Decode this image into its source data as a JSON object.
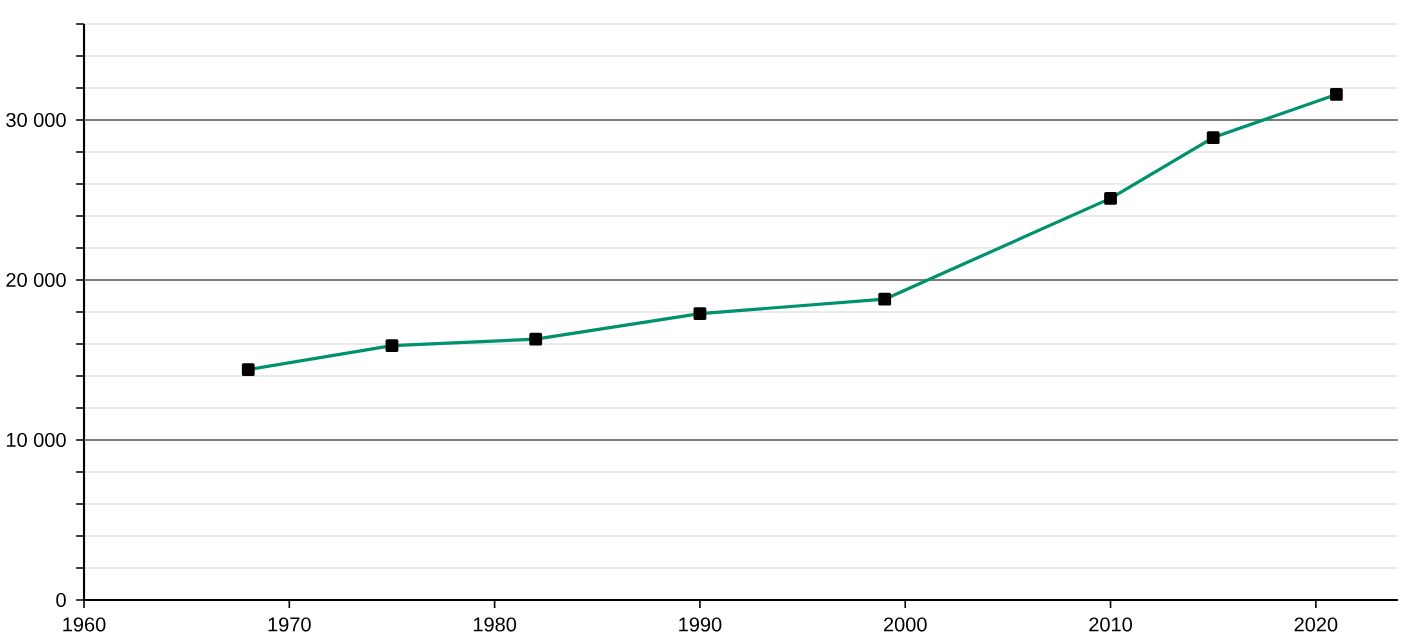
{
  "chart_data": {
    "type": "line",
    "x": [
      1968,
      1975,
      1982,
      1990,
      1999,
      2010,
      2015,
      2021
    ],
    "series": [
      {
        "color": "#00916e",
        "values": [
          14400,
          15900,
          16300,
          17900,
          18800,
          25100,
          28900,
          31600
        ]
      }
    ],
    "xlim": [
      1960,
      2024
    ],
    "xticks": [
      1960,
      1970,
      1980,
      1990,
      2000,
      2010,
      2020
    ],
    "ylim": [
      0,
      36000
    ],
    "yticks": [
      0,
      {
        "value": 2000,
        "label": null
      },
      {
        "value": 4000,
        "label": null
      },
      {
        "value": 6000,
        "label": null
      },
      {
        "value": 8000,
        "label": null
      },
      {
        "value": 10000,
        "label": "10 000"
      },
      {
        "value": 12000,
        "label": null
      },
      {
        "value": 14000,
        "label": null
      },
      {
        "value": 16000,
        "label": null
      },
      {
        "value": 18000,
        "label": null
      },
      {
        "value": 20000,
        "label": "20 000"
      },
      {
        "value": 22000,
        "label": null
      },
      {
        "value": 24000,
        "label": null
      },
      {
        "value": 26000,
        "label": null
      },
      {
        "value": 28000,
        "label": null
      },
      {
        "value": 30000,
        "label": "30 000"
      },
      {
        "value": 32000,
        "label": null
      },
      {
        "value": 34000,
        "label": null
      },
      {
        "value": 36000,
        "label": null
      }
    ],
    "grid": "y",
    "marker": "square",
    "line_style": "solid"
  }
}
